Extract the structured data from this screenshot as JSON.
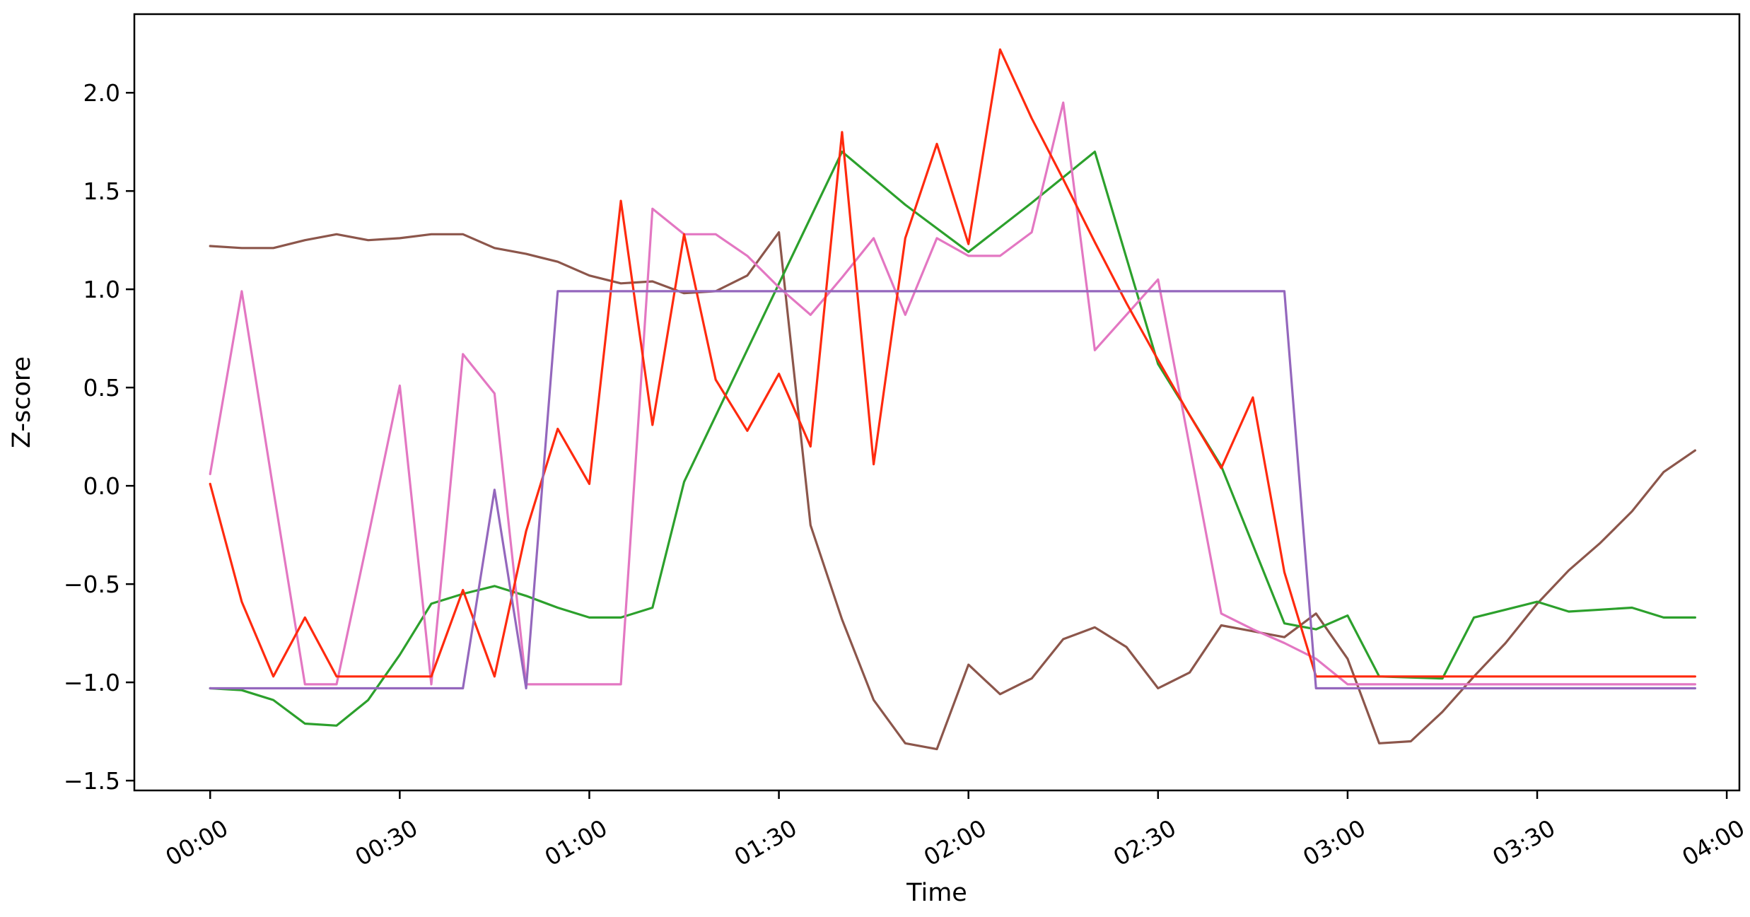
{
  "chart_data": {
    "type": "line",
    "title": "",
    "xlabel": "Time",
    "ylabel": "Z-score",
    "x_unit": "minutes",
    "xlim": [
      -12,
      242
    ],
    "ylim": [
      -1.55,
      2.4
    ],
    "grid": false,
    "legend": "none",
    "x_ticks": [
      {
        "value": 0,
        "label": "00:00"
      },
      {
        "value": 30,
        "label": "00:30"
      },
      {
        "value": 60,
        "label": "01:00"
      },
      {
        "value": 90,
        "label": "01:30"
      },
      {
        "value": 120,
        "label": "02:00"
      },
      {
        "value": 150,
        "label": "02:30"
      },
      {
        "value": 180,
        "label": "03:00"
      },
      {
        "value": 210,
        "label": "03:30"
      },
      {
        "value": 240,
        "label": "04:00"
      }
    ],
    "y_ticks": [
      {
        "value": -1.5,
        "label": "−1.5"
      },
      {
        "value": -1.0,
        "label": "−1.0"
      },
      {
        "value": -0.5,
        "label": "−0.5"
      },
      {
        "value": 0.0,
        "label": "0.0"
      },
      {
        "value": 0.5,
        "label": "0.5"
      },
      {
        "value": 1.0,
        "label": "1.0"
      },
      {
        "value": 1.5,
        "label": "1.5"
      },
      {
        "value": 2.0,
        "label": "2.0"
      }
    ],
    "series": [
      {
        "color": "#8c564b",
        "x": [
          0,
          5,
          10,
          15,
          20,
          25,
          30,
          35,
          40,
          45,
          50,
          55,
          60,
          65,
          70,
          75,
          80,
          85,
          90,
          95,
          100,
          105,
          110,
          115,
          120,
          125,
          130,
          135,
          140,
          145,
          150,
          155,
          160,
          165,
          170,
          175,
          180,
          185,
          190,
          195,
          200,
          205,
          210,
          215,
          220,
          225,
          230,
          235
        ],
        "y": [
          1.22,
          1.21,
          1.21,
          1.25,
          1.28,
          1.25,
          1.26,
          1.28,
          1.28,
          1.21,
          1.18,
          1.14,
          1.07,
          1.03,
          1.04,
          0.98,
          0.99,
          1.07,
          1.29,
          -0.2,
          -0.68,
          -1.09,
          -1.31,
          -1.34,
          -0.91,
          -1.06,
          -0.98,
          -0.78,
          -0.72,
          -0.82,
          -1.03,
          -0.95,
          -0.71,
          -0.74,
          -0.77,
          -0.65,
          -0.88,
          -1.31,
          -1.3,
          -1.15,
          -0.97,
          -0.8,
          -0.6,
          -0.43,
          -0.29,
          -0.13,
          0.07,
          0.18
        ]
      },
      {
        "color": "#2ca02c",
        "x": [
          0,
          5,
          10,
          15,
          20,
          25,
          30,
          35,
          40,
          45,
          50,
          55,
          60,
          65,
          70,
          75,
          100,
          110,
          120,
          130,
          140,
          150,
          160,
          170,
          175,
          180,
          185,
          195,
          200,
          205,
          210,
          215,
          220,
          225,
          230,
          235
        ],
        "y": [
          -1.03,
          -1.04,
          -1.09,
          -1.21,
          -1.22,
          -1.09,
          -0.86,
          -0.6,
          -0.55,
          -0.51,
          -0.56,
          -0.62,
          -0.67,
          -0.67,
          -0.62,
          0.02,
          1.7,
          1.43,
          1.19,
          1.44,
          1.7,
          0.62,
          0.1,
          -0.7,
          -0.73,
          -0.66,
          -0.97,
          -0.98,
          -0.67,
          -0.63,
          -0.59,
          -0.64,
          -0.63,
          -0.62,
          -0.67,
          -0.67
        ]
      },
      {
        "color": "#e377c2",
        "x": [
          0,
          5,
          10,
          15,
          20,
          25,
          30,
          35,
          40,
          45,
          50,
          55,
          60,
          65,
          70,
          75,
          80,
          85,
          90,
          95,
          100,
          105,
          110,
          115,
          120,
          125,
          130,
          135,
          140,
          145,
          150,
          155,
          160,
          165,
          170,
          175,
          180,
          185,
          190,
          195,
          200,
          205,
          210,
          215,
          220,
          225,
          230,
          235
        ],
        "y": [
          0.06,
          0.99,
          -0.02,
          -1.01,
          -1.01,
          -0.26,
          0.51,
          -1.01,
          0.67,
          0.47,
          -1.01,
          -1.01,
          -1.01,
          -1.01,
          1.41,
          1.28,
          1.28,
          1.17,
          1.01,
          0.87,
          1.06,
          1.26,
          0.87,
          1.26,
          1.17,
          1.17,
          1.29,
          1.95,
          0.69,
          0.87,
          1.05,
          0.2,
          -0.65,
          -0.73,
          -0.8,
          -0.88,
          -1.01,
          -1.01,
          -1.01,
          -1.01,
          -1.01,
          -1.01,
          -1.01,
          -1.01,
          -1.01,
          -1.01,
          -1.01,
          -1.01
        ]
      },
      {
        "color": "#ff2a0e",
        "x": [
          0,
          5,
          10,
          15,
          20,
          25,
          30,
          35,
          40,
          45,
          50,
          55,
          60,
          65,
          70,
          75,
          80,
          85,
          90,
          95,
          100,
          105,
          110,
          115,
          120,
          125,
          130,
          135,
          140,
          145,
          150,
          155,
          160,
          165,
          170,
          175,
          180,
          185,
          190,
          195,
          200,
          205,
          210,
          215,
          220,
          225,
          230,
          235
        ],
        "y": [
          0.01,
          -0.59,
          -0.97,
          -0.67,
          -0.97,
          -0.97,
          -0.97,
          -0.97,
          -0.53,
          -0.97,
          -0.23,
          0.29,
          0.01,
          1.45,
          0.31,
          1.28,
          0.54,
          0.28,
          0.57,
          0.2,
          1.8,
          0.11,
          1.26,
          1.74,
          1.23,
          2.22,
          1.87,
          1.56,
          1.24,
          0.93,
          0.64,
          0.36,
          0.09,
          0.45,
          -0.44,
          -0.97,
          -0.97,
          -0.97,
          -0.97,
          -0.97,
          -0.97,
          -0.97,
          -0.97,
          -0.97,
          -0.97,
          -0.97,
          -0.97,
          -0.97
        ]
      },
      {
        "color": "#9467bd",
        "x": [
          0,
          5,
          10,
          15,
          20,
          25,
          30,
          35,
          40,
          45,
          50,
          55,
          60,
          65,
          70,
          75,
          80,
          85,
          90,
          95,
          100,
          105,
          110,
          115,
          120,
          125,
          130,
          135,
          140,
          145,
          150,
          155,
          160,
          165,
          170,
          175,
          180,
          185,
          190,
          195,
          200,
          205,
          210,
          215,
          220,
          225,
          230,
          235
        ],
        "y": [
          -1.03,
          -1.03,
          -1.03,
          -1.03,
          -1.03,
          -1.03,
          -1.03,
          -1.03,
          -1.03,
          -0.02,
          -1.03,
          0.99,
          0.99,
          0.99,
          0.99,
          0.99,
          0.99,
          0.99,
          0.99,
          0.99,
          0.99,
          0.99,
          0.99,
          0.99,
          0.99,
          0.99,
          0.99,
          0.99,
          0.99,
          0.99,
          0.99,
          0.99,
          0.99,
          0.99,
          0.99,
          -1.03,
          -1.03,
          -1.03,
          -1.03,
          -1.03,
          -1.03,
          -1.03,
          -1.03,
          -1.03,
          -1.03,
          -1.03,
          -1.03,
          -1.03
        ]
      }
    ]
  }
}
